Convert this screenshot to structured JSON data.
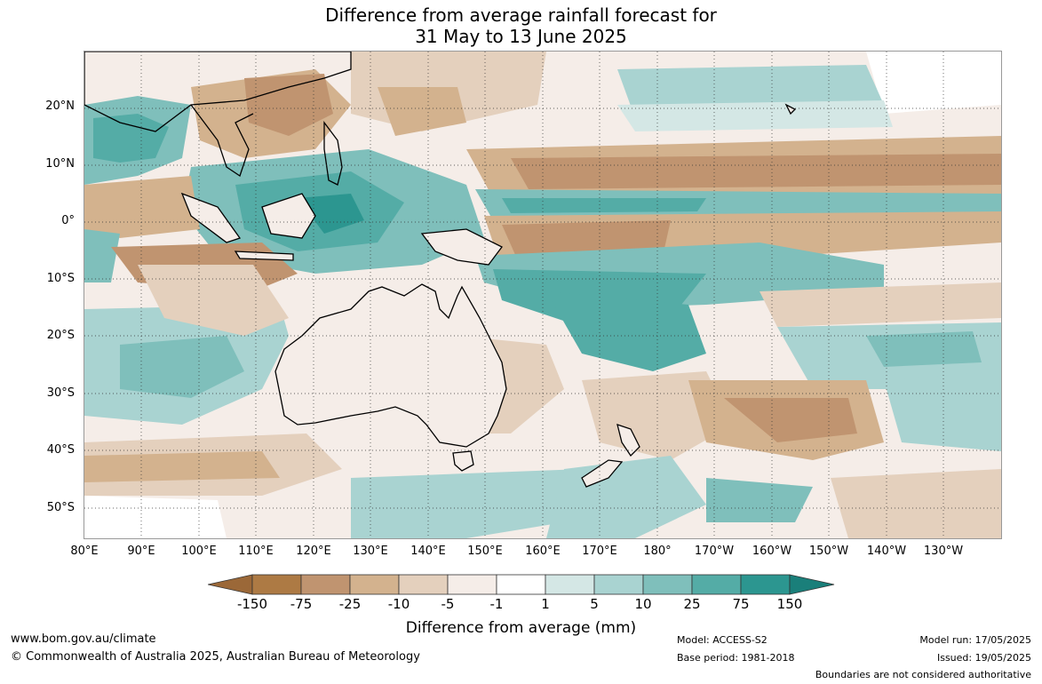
{
  "title": {
    "line1": "Difference from average rainfall forecast for",
    "line2": "31 May to 13 June 2025"
  },
  "map": {
    "lat_labels": [
      "20°N",
      "10°N",
      "0°",
      "10°S",
      "20°S",
      "30°S",
      "40°S",
      "50°S"
    ],
    "lon_labels": [
      "80°E",
      "90°E",
      "100°E",
      "110°E",
      "120°E",
      "130°E",
      "140°E",
      "150°E",
      "160°E",
      "170°E",
      "180°",
      "170°W",
      "160°W",
      "150°W",
      "140°W",
      "130°W"
    ]
  },
  "legend": {
    "title": "Difference from average (mm)",
    "labels": [
      "-150",
      "-75",
      "-25",
      "-10",
      "-5",
      "-1",
      "1",
      "5",
      "10",
      "25",
      "75",
      "150"
    ],
    "colors": [
      "#9b6838",
      "#ad7a44",
      "#c09470",
      "#d3b28e",
      "#e4d0bd",
      "#f5ede8",
      "#ffffff",
      "#d4e7e5",
      "#a9d3d1",
      "#7fbfbb",
      "#54aca6",
      "#2c9690",
      "#1a7f7a"
    ]
  },
  "footer": {
    "website": "www.bom.gov.au/climate",
    "copyright": "© Commonwealth of Australia 2025, Australian Bureau of Meteorology",
    "model": "Model: ACCESS-S2",
    "base_period": "Base period: 1981-2018",
    "model_run": "Model run: 17/05/2025",
    "issued": "Issued: 19/05/2025",
    "disclaimer": "Boundaries are not considered authoritative"
  }
}
